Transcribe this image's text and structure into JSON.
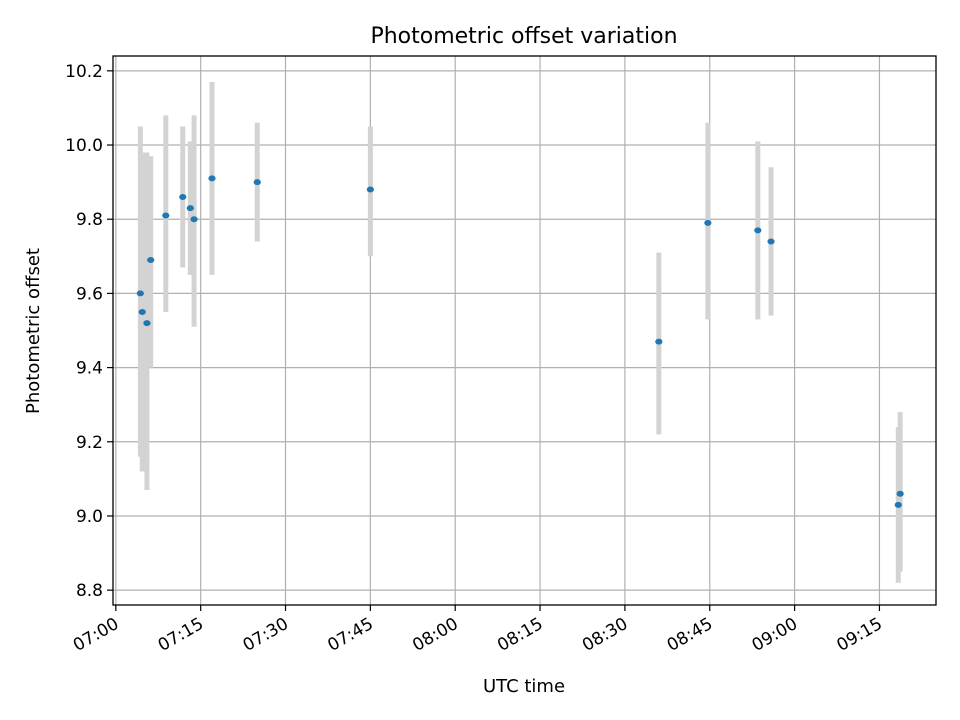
{
  "chart_data": {
    "type": "scatter",
    "title": "Photometric offset variation",
    "xlabel": "UTC time",
    "ylabel": "Photometric offset",
    "x_ticks": [
      "07:00",
      "07:15",
      "07:30",
      "07:45",
      "08:00",
      "08:15",
      "08:30",
      "08:45",
      "09:00",
      "09:15"
    ],
    "y_ticks": [
      "8.8",
      "9.0",
      "9.2",
      "9.4",
      "9.6",
      "9.8",
      "10.0",
      "10.2"
    ],
    "xlim": [
      "06:59:30",
      "09:25:00"
    ],
    "ylim": [
      8.76,
      10.24
    ],
    "grid": true,
    "colors": {
      "point": "#1f77b4",
      "error_bar": "#d3d3d3",
      "grid": "#b0b0b0"
    },
    "series": [
      {
        "points": [
          {
            "x": "07:04:20",
            "y": 9.6,
            "yerr": [
              9.16,
              10.05
            ]
          },
          {
            "x": "07:04:40",
            "y": 9.55,
            "yerr": [
              9.12,
              9.98
            ]
          },
          {
            "x": "07:05:30",
            "y": 9.52,
            "yerr": [
              9.07,
              9.98
            ]
          },
          {
            "x": "07:06:10",
            "y": 9.69,
            "yerr": [
              9.4,
              9.97
            ]
          },
          {
            "x": "07:08:50",
            "y": 9.81,
            "yerr": [
              9.55,
              10.08
            ]
          },
          {
            "x": "07:11:50",
            "y": 9.86,
            "yerr": [
              9.67,
              10.05
            ]
          },
          {
            "x": "07:13:10",
            "y": 9.83,
            "yerr": [
              9.65,
              10.01
            ]
          },
          {
            "x": "07:13:50",
            "y": 9.8,
            "yerr": [
              9.51,
              10.08
            ]
          },
          {
            "x": "07:17:00",
            "y": 9.91,
            "yerr": [
              9.65,
              10.17
            ]
          },
          {
            "x": "07:25:00",
            "y": 9.9,
            "yerr": [
              9.74,
              10.06
            ]
          },
          {
            "x": "07:45:00",
            "y": 9.88,
            "yerr": [
              9.7,
              10.05
            ]
          },
          {
            "x": "08:36:00",
            "y": 9.47,
            "yerr": [
              9.22,
              9.71
            ]
          },
          {
            "x": "08:44:40",
            "y": 9.79,
            "yerr": [
              9.53,
              10.06
            ]
          },
          {
            "x": "08:53:30",
            "y": 9.77,
            "yerr": [
              9.53,
              10.01
            ]
          },
          {
            "x": "08:55:50",
            "y": 9.74,
            "yerr": [
              9.54,
              9.94
            ]
          },
          {
            "x": "09:18:20",
            "y": 9.03,
            "yerr": [
              8.82,
              9.24
            ]
          },
          {
            "x": "09:18:40",
            "y": 9.06,
            "yerr": [
              8.85,
              9.28
            ]
          }
        ]
      }
    ]
  }
}
